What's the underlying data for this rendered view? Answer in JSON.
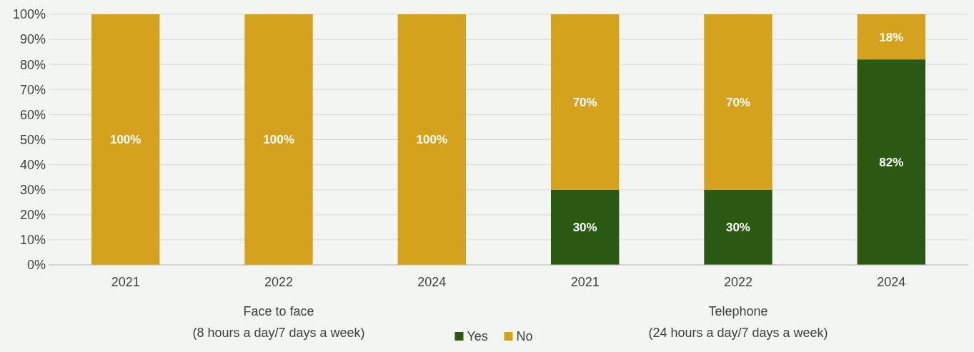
{
  "chart_data": {
    "type": "bar",
    "stacked": true,
    "categories": [
      "2021",
      "2022",
      "2024",
      "2021",
      "2022",
      "2024"
    ],
    "series": [
      {
        "name": "Yes",
        "color": "#2a5914",
        "values": [
          0,
          0,
          0,
          30,
          30,
          82
        ],
        "value_labels": [
          null,
          null,
          null,
          "30%",
          "30%",
          "82%"
        ]
      },
      {
        "name": "No",
        "color": "#d4a21c",
        "values": [
          100,
          100,
          100,
          70,
          70,
          18
        ],
        "value_labels": [
          "100%",
          "100%",
          "100%",
          "70%",
          "70%",
          "18%"
        ]
      }
    ],
    "ylim": [
      0,
      100
    ],
    "yticks": [
      {
        "value": 0,
        "label": "0%"
      },
      {
        "value": 10,
        "label": "10%"
      },
      {
        "value": 20,
        "label": "20%"
      },
      {
        "value": 30,
        "label": "30%"
      },
      {
        "value": 40,
        "label": "40%"
      },
      {
        "value": 50,
        "label": "50%"
      },
      {
        "value": 60,
        "label": "60%"
      },
      {
        "value": 70,
        "label": "70%"
      },
      {
        "value": 80,
        "label": "80%"
      },
      {
        "value": 90,
        "label": "90%"
      },
      {
        "value": 100,
        "label": "100%"
      }
    ],
    "grid": "y",
    "legend": "bottom",
    "annotations": [
      "Face to face\n(8 hours a day/7 days a week)",
      "Telephone\n(24 hours a day/7 days a week)"
    ]
  }
}
